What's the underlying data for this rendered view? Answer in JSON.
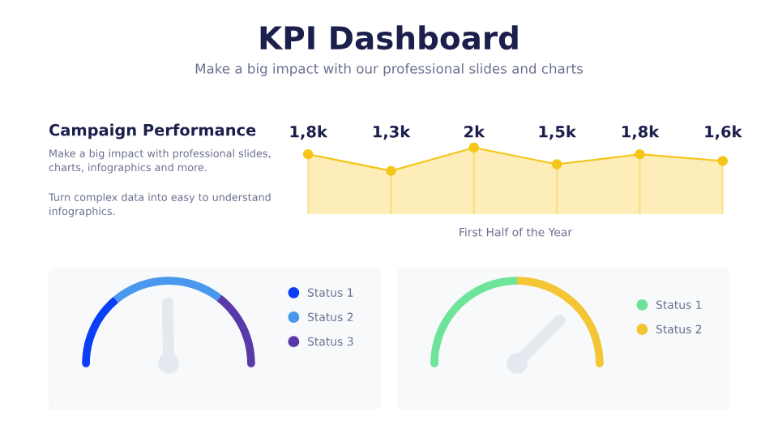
{
  "chart_data": [
    {
      "type": "other",
      "title": "KPI Dashboard",
      "subtitle": "Make a big impact with our professional slides and charts"
    },
    {
      "type": "other",
      "title": "Campaign Performance",
      "annotations": [
        "Make a big impact with professional slides, charts, infographics and more.",
        "Turn complex data into easy to understand infographics."
      ]
    },
    {
      "type": "area",
      "categories": [
        null,
        null,
        null,
        null,
        null,
        null
      ],
      "xlabel": "First Half of the Year",
      "grid": "x",
      "tick_labels": false,
      "marker": "circle",
      "series": [
        {
          "color": "#f5c518",
          "values": [
            1.8,
            1.3,
            2,
            1.5,
            1.8,
            1.6
          ],
          "value_labels": [
            "1,8k",
            "1,3k",
            "2k",
            "1,5k",
            "1,8k",
            "1,6k"
          ]
        }
      ]
    },
    {
      "type": "donut",
      "categories": [
        "Status 1",
        "Status 2",
        "Status 3"
      ],
      "values": [
        28,
        43,
        29
      ],
      "colors": [
        "#0a3ff5",
        "#4a98ee",
        "#5a3aa8"
      ],
      "needle": "Status 2",
      "legend": "right"
    },
    {
      "type": "donut",
      "categories": [
        "Status 1",
        "Status 2"
      ],
      "values": [
        50,
        50
      ],
      "colors": [
        "#6ee39a",
        "#f4c534"
      ],
      "needle": "Status 2",
      "legend": "right"
    }
  ]
}
